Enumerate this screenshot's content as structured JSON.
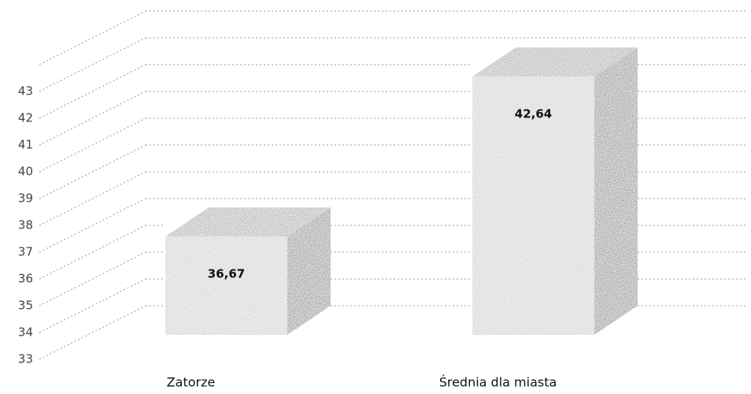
{
  "chart_data": {
    "type": "bar3d",
    "categories": [
      "Zatorze",
      "Średnia dla miasta"
    ],
    "values": [
      36.67,
      42.64
    ],
    "value_labels": [
      "36,67",
      "42,64"
    ],
    "color": "#c8c8c8",
    "ylim": [
      33,
      44
    ],
    "yticks": [
      33,
      34,
      35,
      36,
      37,
      38,
      39,
      40,
      41,
      42,
      43
    ],
    "grid": true
  }
}
